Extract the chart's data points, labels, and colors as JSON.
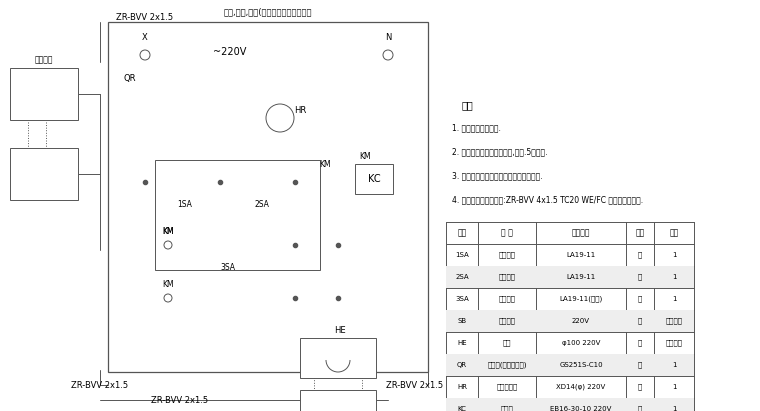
{
  "bg_color": "#ffffff",
  "line_color": "#555555",
  "title_top": "喷门,喷流,喷箱(备手灯及喷箱口上安装",
  "notes_title": "说明",
  "notes": [
    "1. 增加火灾报警设备.",
    "2. 控制箱壁在水泵控制箱内,用截.5米桥架.",
    "3. 桌面按钮消警符合每个楼大楼内各组个.",
    "4. 警铃及桌面按钮组用:ZR-BVV 4x1.5 TC20 WE/FC 桥架敷水普重些."
  ],
  "table_headers": [
    "符号",
    "名 称",
    "型号规格",
    "单位",
    "数量"
  ],
  "table_rows": [
    [
      "1SA",
      "停止按钮",
      "LA19-11",
      "个",
      "1"
    ],
    [
      "2SA",
      "启动按钮",
      "LA19-11",
      "个",
      "1"
    ],
    [
      "3SA",
      "消音按钮",
      "LA19-11(带锁)",
      "个",
      "1"
    ],
    [
      "SB",
      "被联按钮",
      "220V",
      "个",
      "同消火栓"
    ],
    [
      "HE",
      "警铃",
      "φ100 220V",
      "个",
      "同消火栓"
    ],
    [
      "QR",
      "断路器(带漏电保护)",
      "GS251S-C10",
      "个",
      "1"
    ],
    [
      "HR",
      "电源指示灯",
      "XD14(φ) 220V",
      "个",
      "1"
    ],
    [
      "KC",
      "接触器",
      "EB16-30-10 220V",
      "个",
      "1"
    ]
  ]
}
